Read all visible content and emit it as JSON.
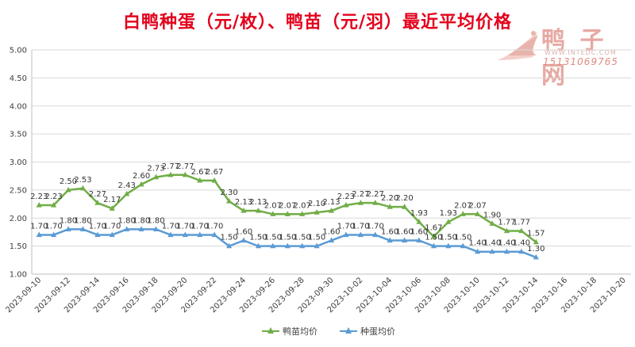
{
  "title": "白鸭种蛋（元/枚）、鸭苗（元/羽）最近平均价格",
  "watermark": {
    "brand": "鸭 子 网",
    "url": "WWW.INTEDC.COM",
    "phone": "15131069765"
  },
  "colors": {
    "duckling": "#70ad47",
    "egg": "#5b9bd5",
    "title": "#e3001b"
  },
  "chart_data": {
    "type": "line",
    "title": "白鸭种蛋（元/枚）、鸭苗（元/羽）最近平均价格",
    "ylim": [
      1.0,
      5.0
    ],
    "yticks": [
      "1.00",
      "1.50",
      "2.00",
      "2.50",
      "3.00",
      "3.50",
      "4.00",
      "4.50",
      "5.00"
    ],
    "x_tick_labels": [
      "2023-09-10",
      "2023-09-12",
      "2023-09-14",
      "2023-09-16",
      "2023-09-18",
      "2023-09-20",
      "2023-09-22",
      "2023-09-24",
      "2023-09-26",
      "2023-09-28",
      "2023-09-30",
      "2023-10-02",
      "2023-10-04",
      "2023-10-06",
      "2023-10-08",
      "2023-10-10",
      "2023-10-12",
      "2023-10-14",
      "2023-10-16",
      "2023-10-18",
      "2023-10-20"
    ],
    "x_range": [
      "2023-09-10",
      "2023-10-20"
    ],
    "grid": "horizontal",
    "legend_position": "bottom",
    "series": [
      {
        "name": "鸭苗均价",
        "color": "#70ad47",
        "dates": [
          "2023-09-10",
          "2023-09-11",
          "2023-09-12",
          "2023-09-13",
          "2023-09-14",
          "2023-09-15",
          "2023-09-16",
          "2023-09-17",
          "2023-09-18",
          "2023-09-19",
          "2023-09-20",
          "2023-09-21",
          "2023-09-22",
          "2023-09-23",
          "2023-09-24",
          "2023-09-25",
          "2023-09-26",
          "2023-09-27",
          "2023-09-28",
          "2023-09-29",
          "2023-09-30",
          "2023-10-01",
          "2023-10-02",
          "2023-10-03",
          "2023-10-04",
          "2023-10-05",
          "2023-10-06",
          "2023-10-07",
          "2023-10-08",
          "2023-10-09",
          "2023-10-10",
          "2023-10-11",
          "2023-10-12",
          "2023-10-13",
          "2023-10-14"
        ],
        "values": [
          2.23,
          2.23,
          2.5,
          2.53,
          2.27,
          2.17,
          2.43,
          2.6,
          2.73,
          2.77,
          2.77,
          2.67,
          2.67,
          2.3,
          2.13,
          2.13,
          2.07,
          2.07,
          2.07,
          2.1,
          2.13,
          2.23,
          2.27,
          2.27,
          2.2,
          2.2,
          1.93,
          1.67,
          1.93,
          2.07,
          2.07,
          1.9,
          1.77,
          1.77,
          1.57
        ],
        "labels": [
          "2.23",
          "2.23",
          "2.50",
          "2.53",
          "2.27",
          "2.17",
          "2.43",
          "2.60",
          "2.73",
          "2.77",
          "2.77",
          "2.67",
          "2.67",
          "2.30",
          "2.13",
          "2.13",
          "2.07",
          "2.07",
          "2.07",
          "2.10",
          "2.13",
          "2.23",
          "2.27",
          "2.27",
          "2.20",
          "2.20",
          "1.93",
          "1.67",
          "1.93",
          "2.07",
          "2.07",
          "1.90",
          "1.77",
          "1.77",
          "1.57"
        ]
      },
      {
        "name": "种蛋均价",
        "color": "#5b9bd5",
        "dates": [
          "2023-09-10",
          "2023-09-11",
          "2023-09-12",
          "2023-09-13",
          "2023-09-14",
          "2023-09-15",
          "2023-09-16",
          "2023-09-17",
          "2023-09-18",
          "2023-09-19",
          "2023-09-20",
          "2023-09-21",
          "2023-09-22",
          "2023-09-23",
          "2023-09-24",
          "2023-09-25",
          "2023-09-26",
          "2023-09-27",
          "2023-09-28",
          "2023-09-29",
          "2023-09-30",
          "2023-10-01",
          "2023-10-02",
          "2023-10-03",
          "2023-10-04",
          "2023-10-05",
          "2023-10-06",
          "2023-10-07",
          "2023-10-08",
          "2023-10-09",
          "2023-10-10",
          "2023-10-11",
          "2023-10-12",
          "2023-10-13",
          "2023-10-14"
        ],
        "values": [
          1.7,
          1.7,
          1.8,
          1.8,
          1.7,
          1.7,
          1.8,
          1.8,
          1.8,
          1.7,
          1.7,
          1.7,
          1.7,
          1.5,
          1.6,
          1.5,
          1.5,
          1.5,
          1.5,
          1.5,
          1.6,
          1.7,
          1.7,
          1.7,
          1.6,
          1.6,
          1.6,
          1.5,
          1.5,
          1.5,
          1.4,
          1.4,
          1.4,
          1.4,
          1.3
        ],
        "labels": [
          "1.70",
          "1.70",
          "1.80",
          "1.80",
          "1.70",
          "1.70",
          "1.80",
          "1.80",
          "1.80",
          "1.70",
          "1.70",
          "1.70",
          "1.70",
          "1.50",
          "1.60",
          "1.50",
          "1.50",
          "1.50",
          "1.50",
          "1.50",
          "1.60",
          "1.70",
          "1.70",
          "1.70",
          "1.60",
          "1.60",
          "1.60",
          "1.50",
          "1.50",
          "1.50",
          "1.40",
          "1.40",
          "1.40",
          "1.40",
          "1.30"
        ]
      }
    ]
  }
}
